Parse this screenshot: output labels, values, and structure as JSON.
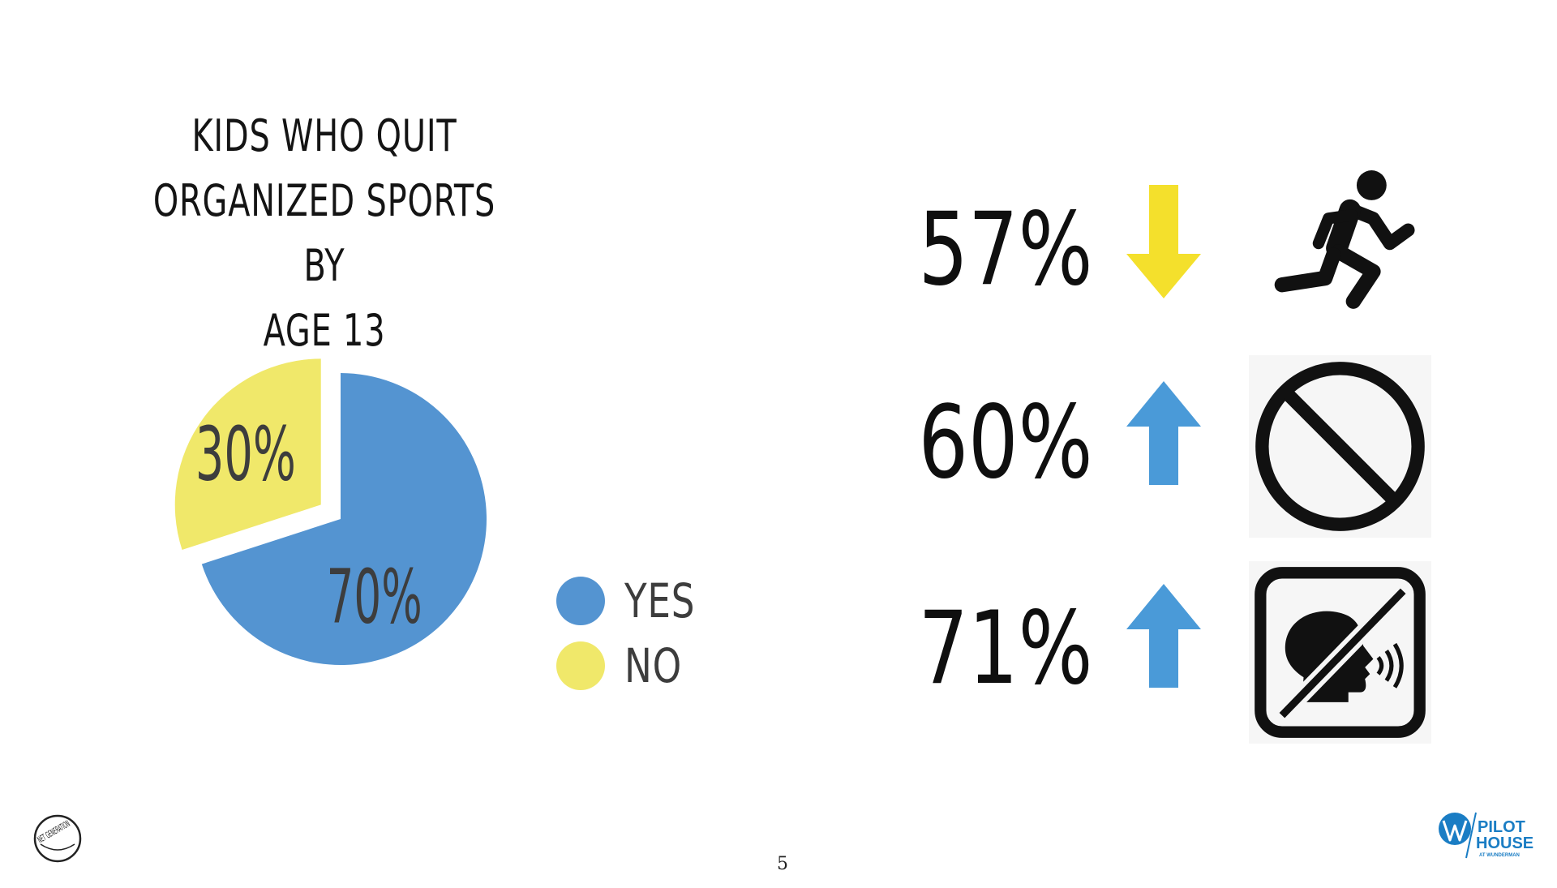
{
  "slide": {
    "page_number": "5",
    "logos": {
      "left_text": "NET GENERATION",
      "right_text_1": "PILOT",
      "right_text_2": "HOUSE",
      "right_text_3": "AT WUNDERMAN"
    }
  },
  "chart_data": {
    "type": "pie",
    "title_lines": [
      "KIDS WHO QUIT",
      "ORGANIZED SPORTS BY",
      "AGE 13"
    ],
    "slices": [
      {
        "label": "YES",
        "value": 70,
        "display": "70%",
        "color": "#5494d1",
        "exploded": false
      },
      {
        "label": "NO",
        "value": 30,
        "display": "30%",
        "color": "#f0e86a",
        "exploded": true
      }
    ],
    "legend": [
      "YES",
      "NO"
    ],
    "legend_placement": "right"
  },
  "stats": [
    {
      "value": "57%",
      "trend": "down",
      "arrow_color": "#f4e02c",
      "icon": "running-person-icon"
    },
    {
      "value": "60%",
      "trend": "up",
      "arrow_color": "#4a9ad8",
      "icon": "prohibited-icon"
    },
    {
      "value": "71%",
      "trend": "up",
      "arrow_color": "#4a9ad8",
      "icon": "no-speaking-icon"
    }
  ]
}
